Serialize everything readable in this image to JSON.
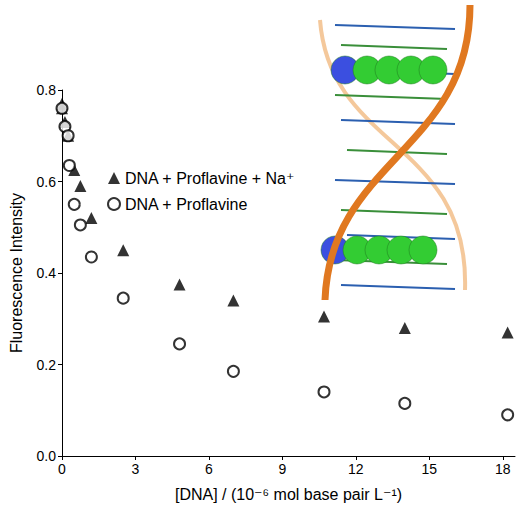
{
  "chart_data": {
    "type": "scatter",
    "x_label": "[DNA] / (10⁻⁶ mol base pair L⁻¹)",
    "y_label": "Fluorescence Intensity",
    "xlim": [
      0,
      18.5
    ],
    "xticks": [
      0,
      3,
      6,
      9,
      12,
      15,
      18
    ],
    "ylim": [
      0,
      0.8
    ],
    "yticks": [
      {
        "value": 0,
        "label": "0.0"
      },
      {
        "value": 0.2,
        "label": "0.2"
      },
      {
        "value": 0.4,
        "label": "0.4"
      },
      {
        "value": 0.6,
        "label": "0.6"
      },
      {
        "value": 0.8,
        "label": "0.8"
      }
    ],
    "grid": false,
    "legend": "upper left",
    "series": [
      {
        "name": "DNA + Proflavine + Na⁺",
        "color": "#000000",
        "marker": "triangle",
        "x": [
          0,
          0,
          0.12,
          0.25,
          0.5,
          0.75,
          1.2,
          2.5,
          4.8,
          7.0,
          10.7,
          14.0,
          18.2
        ],
        "values": [
          0.77,
          0.76,
          0.73,
          0.7,
          0.625,
          0.59,
          0.52,
          0.45,
          0.375,
          0.34,
          0.305,
          0.28,
          0.27
        ]
      },
      {
        "name": "DNA + Proflavine",
        "color": "#000000",
        "marker": "open_circle",
        "x": [
          0,
          0.12,
          0.25,
          0.3,
          0.5,
          0.75,
          1.2,
          2.5,
          4.8,
          7.0,
          10.7,
          14.0,
          18.2
        ],
        "values": [
          0.76,
          0.72,
          0.7,
          0.635,
          0.55,
          0.505,
          0.435,
          0.345,
          0.245,
          0.185,
          0.14,
          0.115,
          0.09
        ]
      }
    ]
  }
}
